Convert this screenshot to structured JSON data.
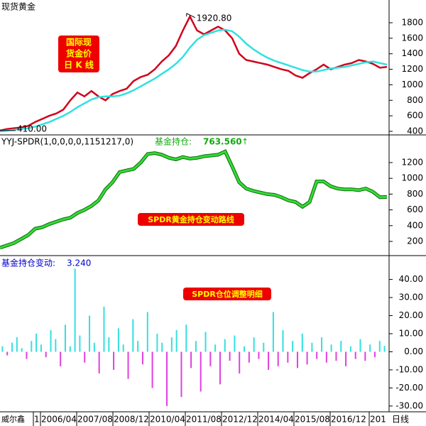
{
  "chart_data": [
    {
      "type": "line",
      "title": "现货黄金",
      "box_label": [
        "国际现",
        "货金价",
        "日 K 线"
      ],
      "series": [
        {
          "color": "#d0021b",
          "values": [
            410,
            430,
            440,
            450,
            470,
            520,
            560,
            600,
            630,
            680,
            800,
            900,
            850,
            920,
            850,
            800,
            880,
            920,
            950,
            1050,
            1100,
            1130,
            1200,
            1300,
            1380,
            1500,
            1700,
            1880,
            1700,
            1650,
            1700,
            1750,
            1700,
            1600,
            1400,
            1320,
            1300,
            1280,
            1260,
            1230,
            1200,
            1180,
            1120,
            1090,
            1150,
            1200,
            1260,
            1200,
            1230,
            1260,
            1280,
            1320,
            1300,
            1270,
            1220,
            1230
          ]
        },
        {
          "color": "#33e0e0",
          "values": [
            400,
            410,
            420,
            430,
            440,
            460,
            490,
            520,
            560,
            600,
            650,
            710,
            760,
            810,
            840,
            850,
            850,
            860,
            890,
            930,
            980,
            1030,
            1080,
            1140,
            1200,
            1270,
            1360,
            1480,
            1580,
            1640,
            1670,
            1700,
            1710,
            1690,
            1620,
            1530,
            1460,
            1400,
            1350,
            1310,
            1280,
            1250,
            1220,
            1190,
            1170,
            1170,
            1190,
            1210,
            1220,
            1230,
            1250,
            1270,
            1290,
            1300,
            1280,
            1260
          ]
        }
      ],
      "annotations": [
        {
          "value": 1920.8,
          "label": "1920.80"
        },
        {
          "value": 410,
          "label": "410.00"
        }
      ],
      "ylim": [
        354,
        2093
      ],
      "yticks": [
        400,
        600,
        800,
        1000,
        1200,
        1400,
        1600,
        1800
      ]
    },
    {
      "type": "line",
      "title": "YYJ-SPDR(1,0,0,0,0,1151217,0)",
      "value_name": "基金持仓:",
      "current_value": {
        "value": 763.56,
        "label": "763.560"
      },
      "arrow": "↑",
      "box_label": "SPDR黄金持仓变动路线",
      "series": [
        {
          "color": "#33dd33",
          "values": [
            120,
            150,
            180,
            230,
            280,
            360,
            380,
            420,
            450,
            480,
            500,
            560,
            600,
            650,
            720,
            860,
            950,
            1080,
            1100,
            1120,
            1200,
            1310,
            1320,
            1300,
            1260,
            1240,
            1270,
            1250,
            1260,
            1280,
            1290,
            1300,
            1340,
            1150,
            950,
            870,
            840,
            820,
            800,
            790,
            760,
            720,
            700,
            640,
            700,
            960,
            960,
            900,
            870,
            860,
            860,
            850,
            870,
            830,
            760,
            763.56
          ]
        }
      ],
      "ylim": [
        20,
        1551
      ],
      "yticks": [
        200,
        400,
        600,
        800,
        1000,
        1200
      ]
    },
    {
      "type": "bar",
      "title": "基金持仓变动:",
      "current_value": {
        "value": 3.24,
        "label": "3.240"
      },
      "box_label": "SPDR仓位调整明细",
      "positive_color": "#33e0e0",
      "negative_color": "#e040e0",
      "values": [
        3,
        -2,
        5,
        8,
        2,
        -4,
        6,
        10,
        4,
        -3,
        12,
        7,
        -8,
        15,
        3,
        46,
        9,
        -6,
        20,
        5,
        -12,
        25,
        8,
        -10,
        13,
        4,
        -15,
        18,
        6,
        -7,
        22,
        -20,
        10,
        5,
        -30,
        8,
        12,
        -25,
        15,
        -9,
        6,
        -22,
        11,
        -8,
        4,
        -18,
        7,
        -5,
        9,
        -12,
        3,
        -6,
        8,
        -4,
        5,
        -10,
        22,
        -8,
        12,
        -6,
        6,
        -9,
        10,
        -7,
        5,
        -4,
        8,
        -6,
        4,
        -5,
        6,
        -8,
        3,
        -4,
        7,
        -5,
        4,
        -3,
        6,
        3.24
      ],
      "ylim": [
        -33.2,
        53.2
      ],
      "yticks": [
        {
          "value": -30,
          "label": "-30.00"
        },
        {
          "value": -20,
          "label": "-20.00"
        },
        {
          "value": -10,
          "label": "-10.00"
        },
        {
          "value": 0,
          "label": "0.00"
        },
        {
          "value": 10,
          "label": "10.00"
        },
        {
          "value": 20,
          "label": "20.00"
        },
        {
          "value": 30,
          "label": "30.00"
        },
        {
          "value": 40,
          "label": "40.00"
        }
      ]
    }
  ],
  "x_axis": {
    "source": "威尔鑫",
    "labels": [
      "1",
      "2006/04",
      "2007/08",
      "2008/12",
      "2010/04",
      "2011/08",
      "2012/12",
      "2014/04",
      "2015/08",
      "2016/12",
      "201"
    ],
    "unit": "日线"
  }
}
